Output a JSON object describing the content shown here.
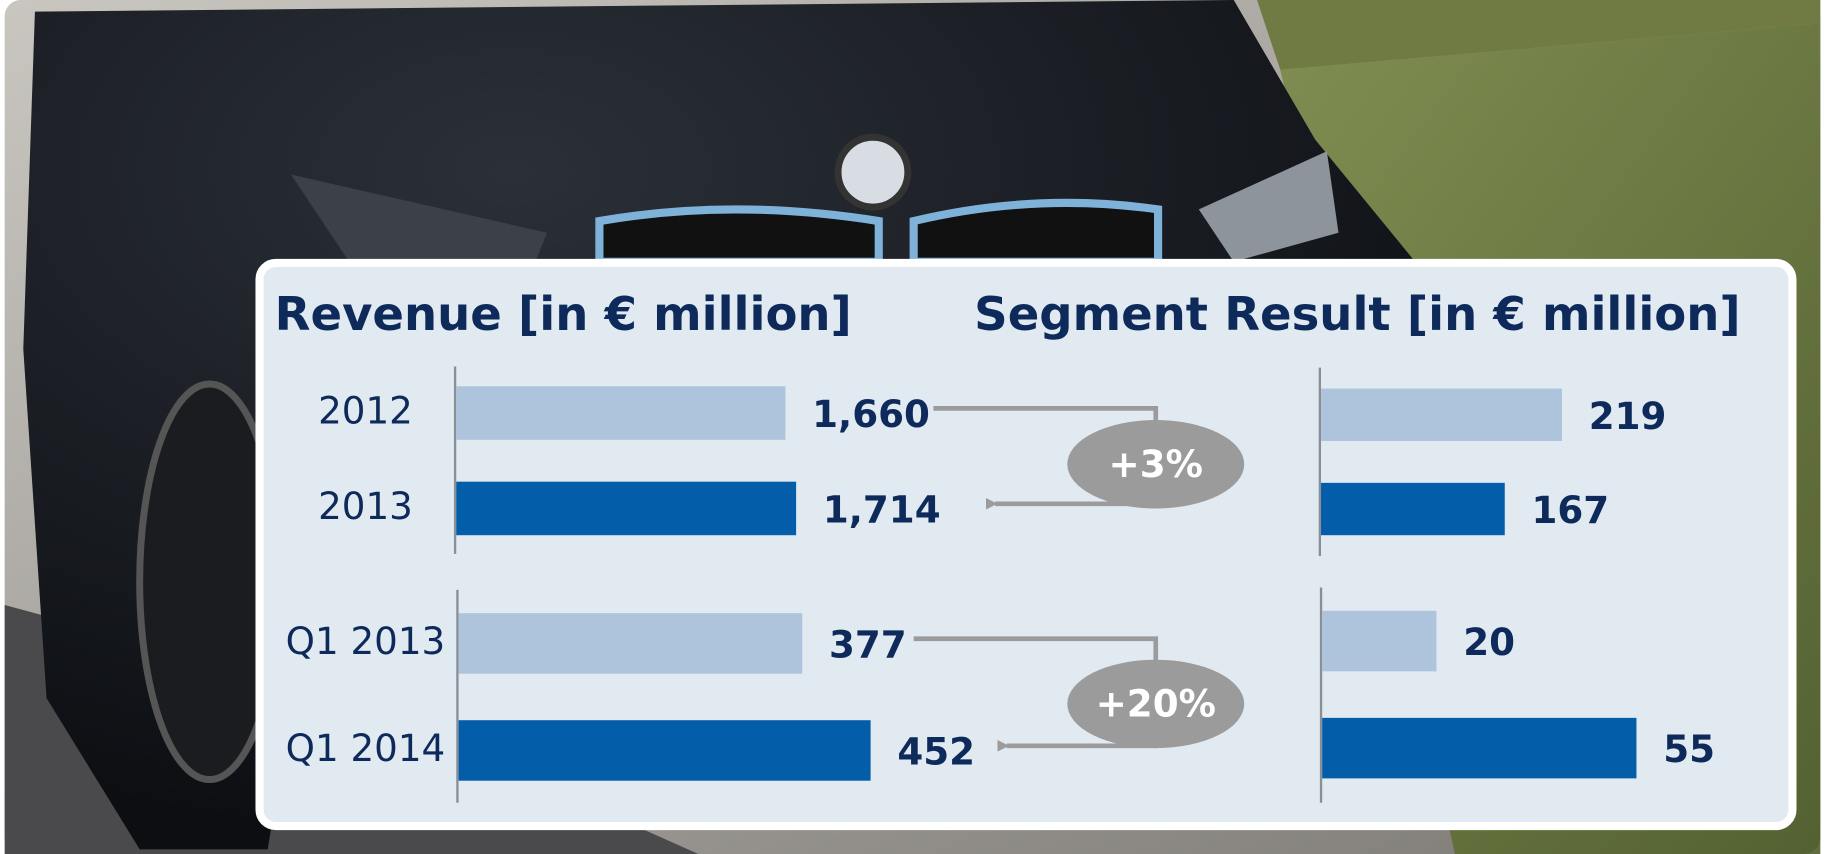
{
  "chart_data": [
    {
      "type": "bar",
      "orientation": "horizontal",
      "title": "Revenue [in € million]",
      "groups": [
        {
          "categories": [
            "2012",
            "2013"
          ],
          "values": [
            1660,
            1714
          ],
          "value_labels": [
            "1,660",
            "1,714"
          ],
          "colors": [
            "#adc4dc",
            "#045da9"
          ]
        },
        {
          "categories": [
            "Q1 2013",
            "Q1 2014"
          ],
          "values": [
            377,
            452
          ],
          "colors": [
            "#adc4dc",
            "#045da9"
          ]
        }
      ],
      "annotations": [
        "+3%",
        "+20%"
      ],
      "annotation_color": "#9b9b9b"
    },
    {
      "type": "bar",
      "orientation": "horizontal",
      "title": "Segment Result [in € million]",
      "groups": [
        {
          "values": [
            219,
            167
          ],
          "colors": [
            "#adc4dc",
            "#045da9"
          ]
        },
        {
          "values": [
            20,
            55
          ],
          "colors": [
            "#adc4dc",
            "#045da9"
          ]
        }
      ]
    }
  ]
}
